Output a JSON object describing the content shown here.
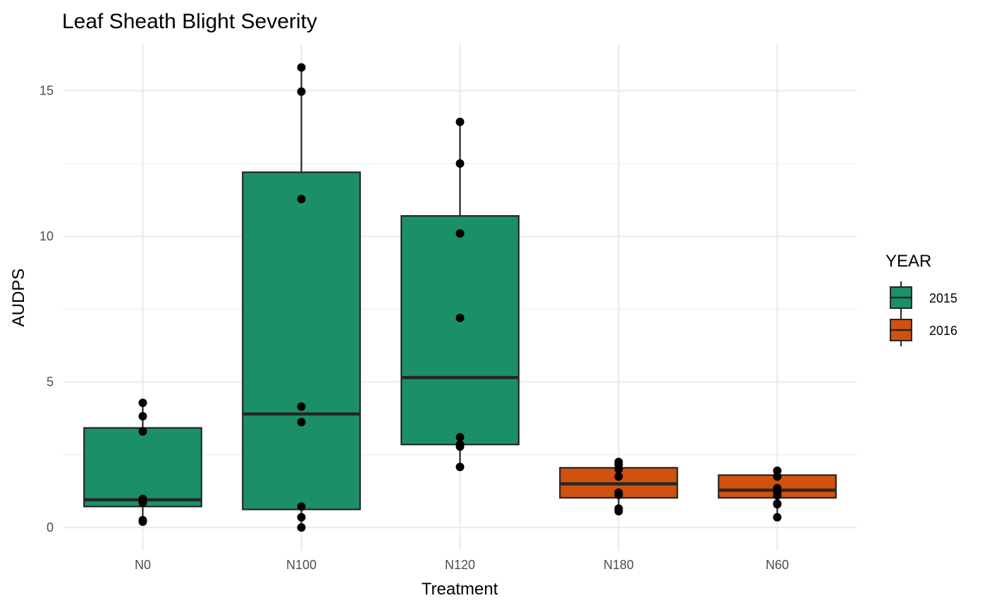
{
  "chart_data": {
    "type": "box",
    "title": "Leaf Sheath Blight Severity",
    "xlabel": "Treatment",
    "ylabel": "AUDPS",
    "categories": [
      "N0",
      "N100",
      "N120",
      "N180",
      "N60"
    ],
    "y_ticks": [
      0,
      5,
      10,
      15
    ],
    "y_tick_labels": [
      "0",
      "5",
      "10",
      "15"
    ],
    "ylim": [
      -0.8,
      16.6
    ],
    "grid": true,
    "legend": {
      "title": "YEAR",
      "position": "right",
      "entries": [
        {
          "label": "2015",
          "color": "#1b9068"
        },
        {
          "label": "2016",
          "color": "#d1510e"
        }
      ]
    },
    "boxes": [
      {
        "category": "N0",
        "year": "2015",
        "q1": 0.72,
        "median": 0.95,
        "q3": 3.42,
        "whisker_low": 0.22,
        "whisker_high": 4.28,
        "points": [
          4.28,
          3.82,
          3.3,
          0.98,
          0.9,
          0.85,
          0.25,
          0.2
        ]
      },
      {
        "category": "N100",
        "year": "2015",
        "q1": 0.62,
        "median": 3.9,
        "q3": 12.2,
        "whisker_low": 0.0,
        "whisker_high": 15.8,
        "points": [
          15.8,
          14.97,
          11.28,
          4.15,
          3.62,
          0.72,
          0.35,
          0.0
        ]
      },
      {
        "category": "N120",
        "year": "2015",
        "q1": 2.85,
        "median": 5.15,
        "q3": 10.7,
        "whisker_low": 2.08,
        "whisker_high": 13.93,
        "points": [
          13.93,
          12.5,
          10.1,
          7.2,
          3.1,
          2.85,
          2.78,
          2.08
        ]
      },
      {
        "category": "N180",
        "year": "2016",
        "q1": 1.02,
        "median": 1.5,
        "q3": 2.05,
        "whisker_low": 0.56,
        "whisker_high": 2.25,
        "points": [
          2.25,
          2.15,
          2.0,
          1.75,
          1.2,
          1.12,
          0.65,
          0.56
        ]
      },
      {
        "category": "N60",
        "year": "2016",
        "q1": 1.02,
        "median": 1.28,
        "q3": 1.8,
        "whisker_low": 0.35,
        "whisker_high": 1.95,
        "points": [
          1.95,
          1.75,
          1.35,
          1.2,
          1.1,
          0.82,
          0.8,
          0.35
        ]
      }
    ]
  },
  "colors": {
    "box_outline": "#262626",
    "point": "#000000",
    "grid": "#ebebeb"
  }
}
